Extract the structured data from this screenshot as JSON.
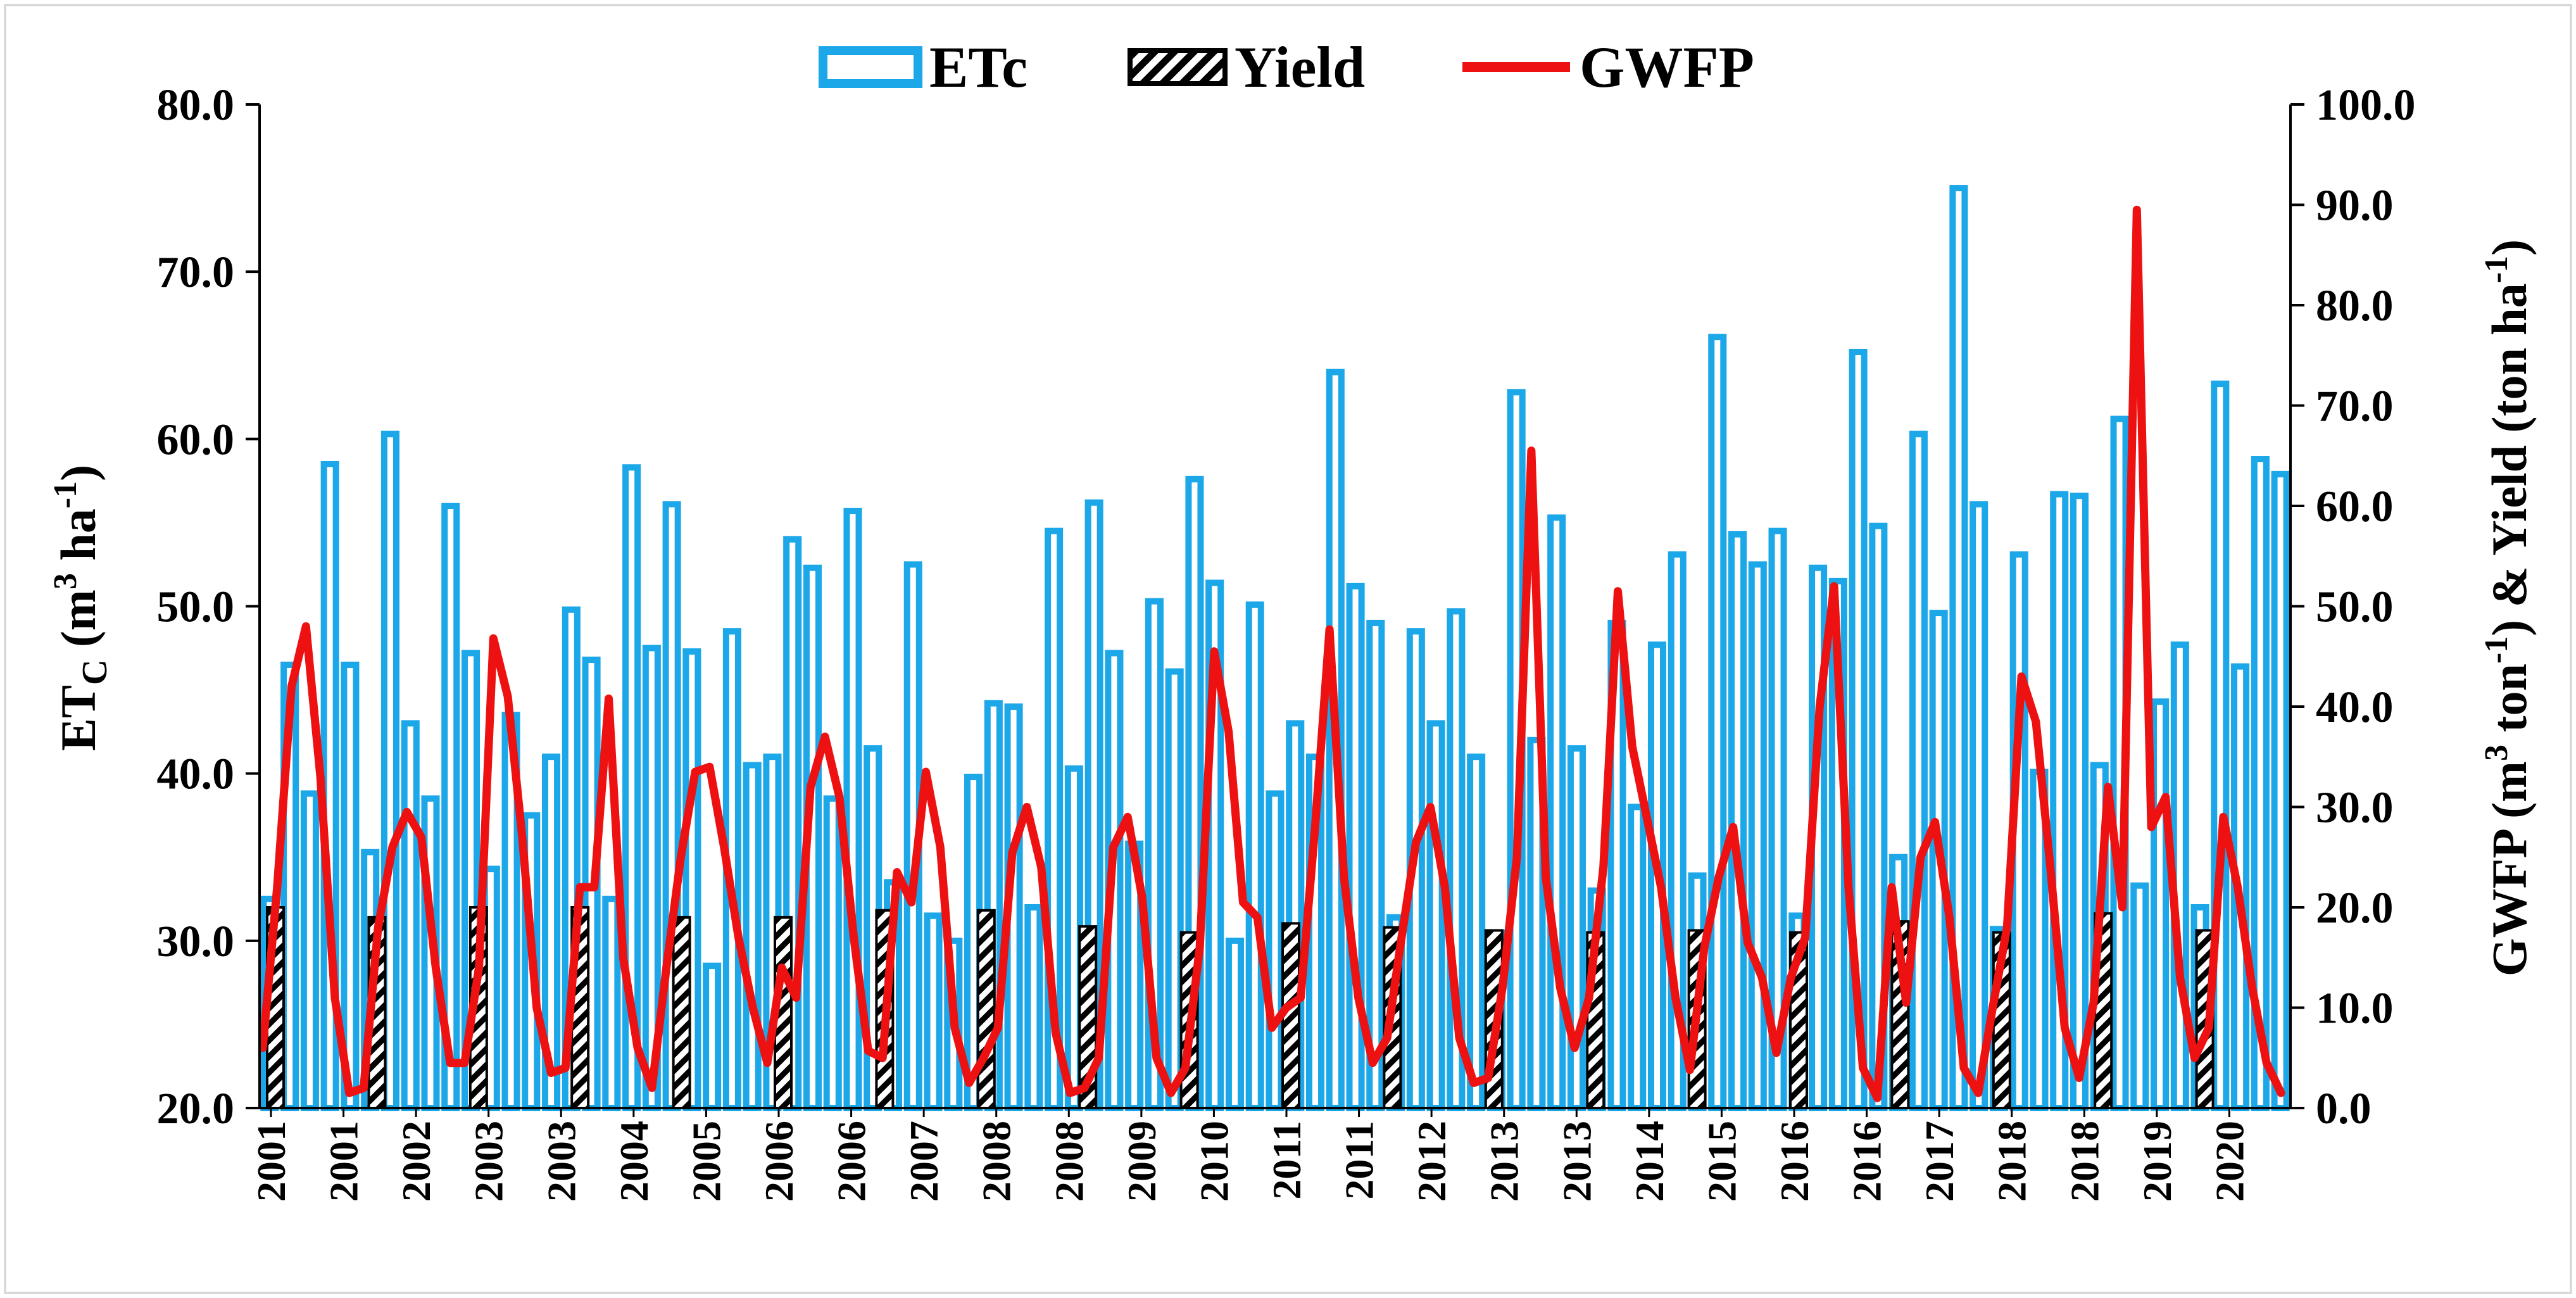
{
  "chart_data": {
    "type": "bar-line-combo",
    "legend": {
      "position": "top-center",
      "entries": [
        {
          "key": "etc",
          "label": "ETc",
          "style": "bar-hollow",
          "color": "#1ba7e8"
        },
        {
          "key": "yield",
          "label": "Yield",
          "style": "bar-hatched",
          "color": "#000000"
        },
        {
          "key": "gwfp",
          "label": "GWFP",
          "style": "line",
          "color": "#ee1111"
        }
      ]
    },
    "y_left": {
      "title_main": "ET",
      "title_sub": "C",
      "title_rest": " (m",
      "title_sup": "3",
      "title_rest2": " ha",
      "title_sup2": "-1",
      "title_end": ")",
      "range": [
        20,
        80
      ],
      "ticks": [
        "20.0",
        "30.0",
        "40.0",
        "50.0",
        "60.0",
        "70.0",
        "80.0"
      ],
      "tick_values": [
        20,
        30,
        40,
        50,
        60,
        70,
        80
      ]
    },
    "y_right": {
      "title_parts": [
        {
          "t": "GWFP (m",
          "k": "n"
        },
        {
          "t": "3",
          "k": "sup"
        },
        {
          "t": " ton",
          "k": "n"
        },
        {
          "t": "-1",
          "k": "sup"
        },
        {
          "t": ") & Yield (ton ha",
          "k": "n"
        },
        {
          "t": "-1",
          "k": "sup"
        },
        {
          "t": ")",
          "k": "n"
        }
      ],
      "range": [
        0,
        100
      ],
      "ticks": [
        "0.0",
        "10.0",
        "20.0",
        "30.0",
        "40.0",
        "50.0",
        "60.0",
        "70.0",
        "80.0",
        "90.0",
        "100.0"
      ],
      "tick_values": [
        0,
        10,
        20,
        30,
        40,
        50,
        60,
        70,
        80,
        90,
        100
      ]
    },
    "x_tick_labels": [
      "2001",
      "2001",
      "2002",
      "2003",
      "2003",
      "2004",
      "2005",
      "2006",
      "2006",
      "2007",
      "2008",
      "2008",
      "2009",
      "2010",
      "2011",
      "2011",
      "2012",
      "2013",
      "2013",
      "2014",
      "2015",
      "2016",
      "2016",
      "2017",
      "2018",
      "2018",
      "2019",
      "2020"
    ],
    "etc_values": [
      32.5,
      46.5,
      38.8,
      58.5,
      46.5,
      35.3,
      60.3,
      43.0,
      38.5,
      56.0,
      47.2,
      34.3,
      43.5,
      37.5,
      41.0,
      49.8,
      46.8,
      32.5,
      58.3,
      47.5,
      56.1,
      47.3,
      28.5,
      48.5,
      40.5,
      41.0,
      54.0,
      52.3,
      38.5,
      55.7,
      41.5,
      33.5,
      52.5,
      31.5,
      30.0,
      39.8,
      44.2,
      44.0,
      32.0,
      54.5,
      40.3,
      56.2,
      47.2,
      35.8,
      50.3,
      46.1,
      57.6,
      51.4,
      30.0,
      50.1,
      38.8,
      43.0,
      41.0,
      64.0,
      51.2,
      49.0,
      31.4,
      48.5,
      43.0,
      49.7,
      41.0,
      30.5,
      62.8,
      42.0,
      55.3,
      41.5,
      33.0,
      49.0,
      38.0,
      47.7,
      53.1,
      33.9,
      66.1,
      54.3,
      52.5,
      54.5,
      31.5,
      52.3,
      51.5,
      65.2,
      54.8,
      35.0,
      60.3,
      49.6,
      75.0,
      56.1,
      30.7,
      53.1,
      40.1,
      56.7,
      56.6,
      40.5,
      61.2,
      33.3,
      44.3,
      47.7,
      32.0,
      63.3,
      46.4,
      58.8,
      57.9
    ],
    "yield_values": [
      20.0,
      19.0,
      20.0,
      20.0,
      19.0,
      19.0,
      19.7,
      19.7,
      18.1,
      17.5,
      18.4,
      18.0,
      17.7,
      17.5,
      17.7,
      17.5,
      18.6,
      17.5,
      19.4,
      17.7
    ],
    "gwfp_values": [
      6,
      22,
      42,
      48,
      33,
      11,
      1.5,
      2,
      18,
      26,
      29.5,
      27,
      14,
      4.5,
      4.5,
      14,
      46.8,
      41,
      27,
      10,
      3.5,
      4,
      22,
      22,
      40.8,
      15,
      6,
      2,
      14,
      25,
      33.5,
      34,
      26,
      17,
      10,
      4.5,
      14,
      11,
      32,
      37,
      31,
      17,
      5.7,
      5,
      23.5,
      20.5,
      33.5,
      26,
      8,
      2.5,
      5,
      8,
      25.5,
      30,
      24,
      7.5,
      1.5,
      2,
      5,
      26,
      29,
      21,
      5,
      1.5,
      4,
      16,
      45.5,
      37.5,
      20.5,
      19,
      8,
      10,
      11,
      28,
      47.7,
      23,
      11,
      4.5,
      7,
      17,
      26.5,
      30,
      22,
      7,
      2.5,
      3,
      12,
      25,
      65.5,
      23,
      12,
      6,
      11,
      24,
      51.5,
      36,
      29,
      22,
      11,
      3.8,
      16,
      23,
      28,
      16.5,
      13,
      5.5,
      13,
      17,
      40,
      52,
      22,
      4,
      1,
      22,
      10.5,
      25,
      28.5,
      19,
      4,
      1.5,
      10,
      18,
      43,
      38.5,
      24,
      8,
      3,
      10.5,
      32,
      20,
      89.5,
      28,
      31,
      13,
      5,
      8,
      29,
      22,
      12,
      4.5,
      1.5
    ]
  }
}
